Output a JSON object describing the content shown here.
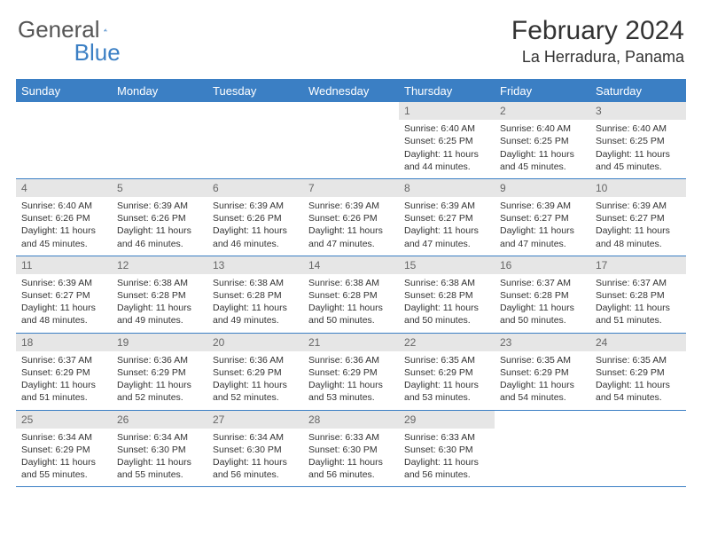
{
  "brand": {
    "part1": "General",
    "part2": "Blue"
  },
  "title": "February 2024",
  "location": "La Herradura, Panama",
  "day_headers": [
    "Sunday",
    "Monday",
    "Tuesday",
    "Wednesday",
    "Thursday",
    "Friday",
    "Saturday"
  ],
  "colors": {
    "accent": "#3b7fc4",
    "header_bg": "#3b7fc4",
    "header_text": "#ffffff",
    "daynum_bg": "#e6e6e6",
    "text": "#333333"
  },
  "typography": {
    "title_fontsize": 30,
    "location_fontsize": 18,
    "header_fontsize": 13,
    "cell_fontsize": 10.5
  },
  "layout": {
    "columns": 7,
    "rows": 5,
    "first_weekday_index": 4,
    "days_in_month": 29
  },
  "cells": [
    {
      "day": "",
      "sunrise": "",
      "sunset": "",
      "daylight": ""
    },
    {
      "day": "",
      "sunrise": "",
      "sunset": "",
      "daylight": ""
    },
    {
      "day": "",
      "sunrise": "",
      "sunset": "",
      "daylight": ""
    },
    {
      "day": "",
      "sunrise": "",
      "sunset": "",
      "daylight": ""
    },
    {
      "day": "1",
      "sunrise": "Sunrise: 6:40 AM",
      "sunset": "Sunset: 6:25 PM",
      "daylight": "Daylight: 11 hours and 44 minutes."
    },
    {
      "day": "2",
      "sunrise": "Sunrise: 6:40 AM",
      "sunset": "Sunset: 6:25 PM",
      "daylight": "Daylight: 11 hours and 45 minutes."
    },
    {
      "day": "3",
      "sunrise": "Sunrise: 6:40 AM",
      "sunset": "Sunset: 6:25 PM",
      "daylight": "Daylight: 11 hours and 45 minutes."
    },
    {
      "day": "4",
      "sunrise": "Sunrise: 6:40 AM",
      "sunset": "Sunset: 6:26 PM",
      "daylight": "Daylight: 11 hours and 45 minutes."
    },
    {
      "day": "5",
      "sunrise": "Sunrise: 6:39 AM",
      "sunset": "Sunset: 6:26 PM",
      "daylight": "Daylight: 11 hours and 46 minutes."
    },
    {
      "day": "6",
      "sunrise": "Sunrise: 6:39 AM",
      "sunset": "Sunset: 6:26 PM",
      "daylight": "Daylight: 11 hours and 46 minutes."
    },
    {
      "day": "7",
      "sunrise": "Sunrise: 6:39 AM",
      "sunset": "Sunset: 6:26 PM",
      "daylight": "Daylight: 11 hours and 47 minutes."
    },
    {
      "day": "8",
      "sunrise": "Sunrise: 6:39 AM",
      "sunset": "Sunset: 6:27 PM",
      "daylight": "Daylight: 11 hours and 47 minutes."
    },
    {
      "day": "9",
      "sunrise": "Sunrise: 6:39 AM",
      "sunset": "Sunset: 6:27 PM",
      "daylight": "Daylight: 11 hours and 47 minutes."
    },
    {
      "day": "10",
      "sunrise": "Sunrise: 6:39 AM",
      "sunset": "Sunset: 6:27 PM",
      "daylight": "Daylight: 11 hours and 48 minutes."
    },
    {
      "day": "11",
      "sunrise": "Sunrise: 6:39 AM",
      "sunset": "Sunset: 6:27 PM",
      "daylight": "Daylight: 11 hours and 48 minutes."
    },
    {
      "day": "12",
      "sunrise": "Sunrise: 6:38 AM",
      "sunset": "Sunset: 6:28 PM",
      "daylight": "Daylight: 11 hours and 49 minutes."
    },
    {
      "day": "13",
      "sunrise": "Sunrise: 6:38 AM",
      "sunset": "Sunset: 6:28 PM",
      "daylight": "Daylight: 11 hours and 49 minutes."
    },
    {
      "day": "14",
      "sunrise": "Sunrise: 6:38 AM",
      "sunset": "Sunset: 6:28 PM",
      "daylight": "Daylight: 11 hours and 50 minutes."
    },
    {
      "day": "15",
      "sunrise": "Sunrise: 6:38 AM",
      "sunset": "Sunset: 6:28 PM",
      "daylight": "Daylight: 11 hours and 50 minutes."
    },
    {
      "day": "16",
      "sunrise": "Sunrise: 6:37 AM",
      "sunset": "Sunset: 6:28 PM",
      "daylight": "Daylight: 11 hours and 50 minutes."
    },
    {
      "day": "17",
      "sunrise": "Sunrise: 6:37 AM",
      "sunset": "Sunset: 6:28 PM",
      "daylight": "Daylight: 11 hours and 51 minutes."
    },
    {
      "day": "18",
      "sunrise": "Sunrise: 6:37 AM",
      "sunset": "Sunset: 6:29 PM",
      "daylight": "Daylight: 11 hours and 51 minutes."
    },
    {
      "day": "19",
      "sunrise": "Sunrise: 6:36 AM",
      "sunset": "Sunset: 6:29 PM",
      "daylight": "Daylight: 11 hours and 52 minutes."
    },
    {
      "day": "20",
      "sunrise": "Sunrise: 6:36 AM",
      "sunset": "Sunset: 6:29 PM",
      "daylight": "Daylight: 11 hours and 52 minutes."
    },
    {
      "day": "21",
      "sunrise": "Sunrise: 6:36 AM",
      "sunset": "Sunset: 6:29 PM",
      "daylight": "Daylight: 11 hours and 53 minutes."
    },
    {
      "day": "22",
      "sunrise": "Sunrise: 6:35 AM",
      "sunset": "Sunset: 6:29 PM",
      "daylight": "Daylight: 11 hours and 53 minutes."
    },
    {
      "day": "23",
      "sunrise": "Sunrise: 6:35 AM",
      "sunset": "Sunset: 6:29 PM",
      "daylight": "Daylight: 11 hours and 54 minutes."
    },
    {
      "day": "24",
      "sunrise": "Sunrise: 6:35 AM",
      "sunset": "Sunset: 6:29 PM",
      "daylight": "Daylight: 11 hours and 54 minutes."
    },
    {
      "day": "25",
      "sunrise": "Sunrise: 6:34 AM",
      "sunset": "Sunset: 6:29 PM",
      "daylight": "Daylight: 11 hours and 55 minutes."
    },
    {
      "day": "26",
      "sunrise": "Sunrise: 6:34 AM",
      "sunset": "Sunset: 6:30 PM",
      "daylight": "Daylight: 11 hours and 55 minutes."
    },
    {
      "day": "27",
      "sunrise": "Sunrise: 6:34 AM",
      "sunset": "Sunset: 6:30 PM",
      "daylight": "Daylight: 11 hours and 56 minutes."
    },
    {
      "day": "28",
      "sunrise": "Sunrise: 6:33 AM",
      "sunset": "Sunset: 6:30 PM",
      "daylight": "Daylight: 11 hours and 56 minutes."
    },
    {
      "day": "29",
      "sunrise": "Sunrise: 6:33 AM",
      "sunset": "Sunset: 6:30 PM",
      "daylight": "Daylight: 11 hours and 56 minutes."
    },
    {
      "day": "",
      "sunrise": "",
      "sunset": "",
      "daylight": ""
    },
    {
      "day": "",
      "sunrise": "",
      "sunset": "",
      "daylight": ""
    }
  ]
}
